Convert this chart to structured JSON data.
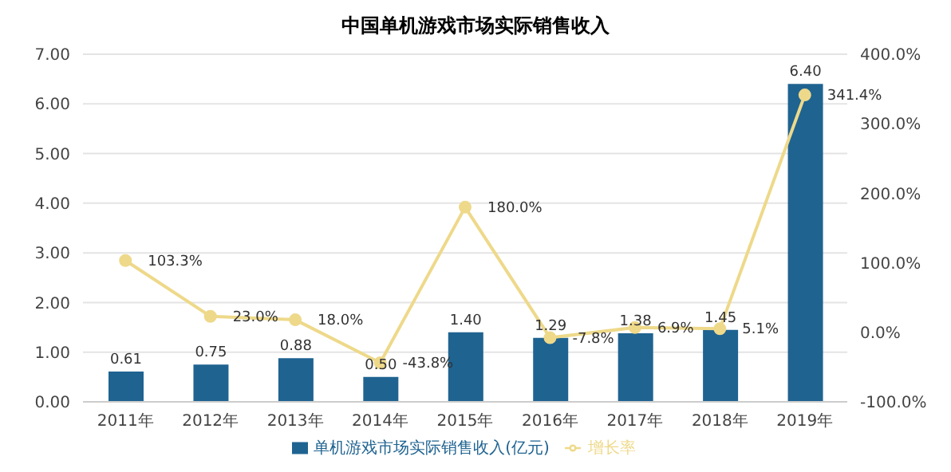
{
  "chart_data": {
    "type": "bar",
    "title": "中国单机游戏市场实际销售收入",
    "categories": [
      "2011年",
      "2012年",
      "2013年",
      "2014年",
      "2015年",
      "2016年",
      "2017年",
      "2018年",
      "2019年"
    ],
    "series": [
      {
        "name": "单机游戏市场实际销售收入(亿元)",
        "color": "#1f6391",
        "values": [
          0.61,
          0.75,
          0.88,
          0.5,
          1.4,
          1.29,
          1.38,
          1.45,
          6.4
        ],
        "value_labels": [
          "0.61",
          "0.75",
          "0.88",
          "0.50",
          "1.40",
          "1.29",
          "1.38",
          "1.45",
          "6.40"
        ]
      },
      {
        "name": "增长率",
        "type": "line",
        "axis": "y2",
        "color": "#eed98a",
        "marker": "circle",
        "values": [
          103.3,
          23.0,
          18.0,
          -43.8,
          180.0,
          -7.8,
          6.9,
          5.1,
          341.4
        ],
        "value_labels": [
          "103.3%",
          "23.0%",
          "18.0%",
          "-43.8%",
          "180.0%",
          "-7.8%",
          "6.9%",
          "5.1%",
          "341.4%"
        ]
      }
    ],
    "ylim": [
      0,
      7
    ],
    "yticks": [
      {
        "value": 0,
        "label": "0.00"
      },
      {
        "value": 1,
        "label": "1.00"
      },
      {
        "value": 2,
        "label": "2.00"
      },
      {
        "value": 3,
        "label": "3.00"
      },
      {
        "value": 4,
        "label": "4.00"
      },
      {
        "value": 5,
        "label": "5.00"
      },
      {
        "value": 6,
        "label": "6.00"
      },
      {
        "value": 7,
        "label": "7.00"
      }
    ],
    "y2lim": [
      -100,
      400
    ],
    "y2ticks": [
      {
        "value": -100,
        "label": "-100.0%"
      },
      {
        "value": 0,
        "label": "0.0%"
      },
      {
        "value": 100,
        "label": "100.0%"
      },
      {
        "value": 200,
        "label": "200.0%"
      },
      {
        "value": 300,
        "label": "300.0%"
      },
      {
        "value": 400,
        "label": "400.0%"
      }
    ],
    "grid": "y",
    "legend": "bottom"
  }
}
